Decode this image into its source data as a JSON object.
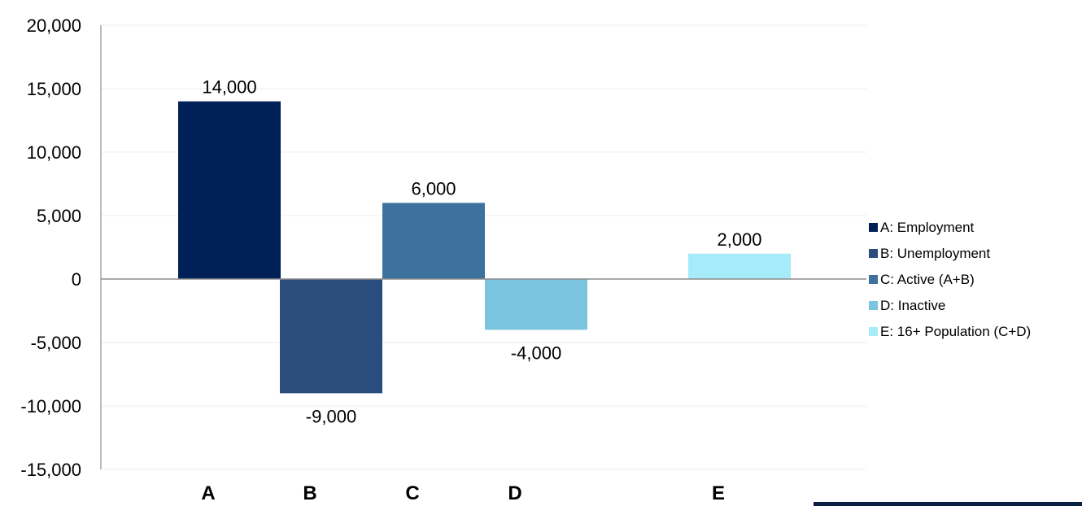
{
  "chart_data": {
    "type": "bar",
    "categories": [
      "A",
      "B",
      "C",
      "D",
      "E"
    ],
    "series": [
      {
        "name": "A: Employment",
        "category": "A",
        "value": 14000,
        "label": "14,000",
        "color": "#002157"
      },
      {
        "name": "B: Unemployment",
        "category": "B",
        "value": -9000,
        "label": "-9,000",
        "color": "#2A4D7E"
      },
      {
        "name": "C: Active (A+B)",
        "category": "C",
        "value": 6000,
        "label": "6,000",
        "color": "#3D729F"
      },
      {
        "name": "D: Inactive",
        "category": "D",
        "value": -4000,
        "label": "-4,000",
        "color": "#7AC4DF"
      },
      {
        "name": "E: 16+ Population (C+D)",
        "category": "E",
        "value": 2000,
        "label": "2,000",
        "color": "#A6EBF9"
      }
    ],
    "ylim": [
      -15000,
      20000
    ],
    "yticks": [
      {
        "value": 20000,
        "label": "20,000"
      },
      {
        "value": 15000,
        "label": "15,000"
      },
      {
        "value": 10000,
        "label": "10,000"
      },
      {
        "value": 5000,
        "label": "5,000"
      },
      {
        "value": 0,
        "label": "0"
      },
      {
        "value": -5000,
        "label": "-5,000"
      },
      {
        "value": -10000,
        "label": "-10,000"
      },
      {
        "value": -15000,
        "label": "-15,000"
      }
    ],
    "grid": true,
    "legend_position": "right"
  },
  "colors": {
    "gridline": "#ECEEF3",
    "axis": "#A6A6A6",
    "zero_line": "#8C8C8C",
    "text": "#000000",
    "footer_bar": "#0B1F45"
  }
}
